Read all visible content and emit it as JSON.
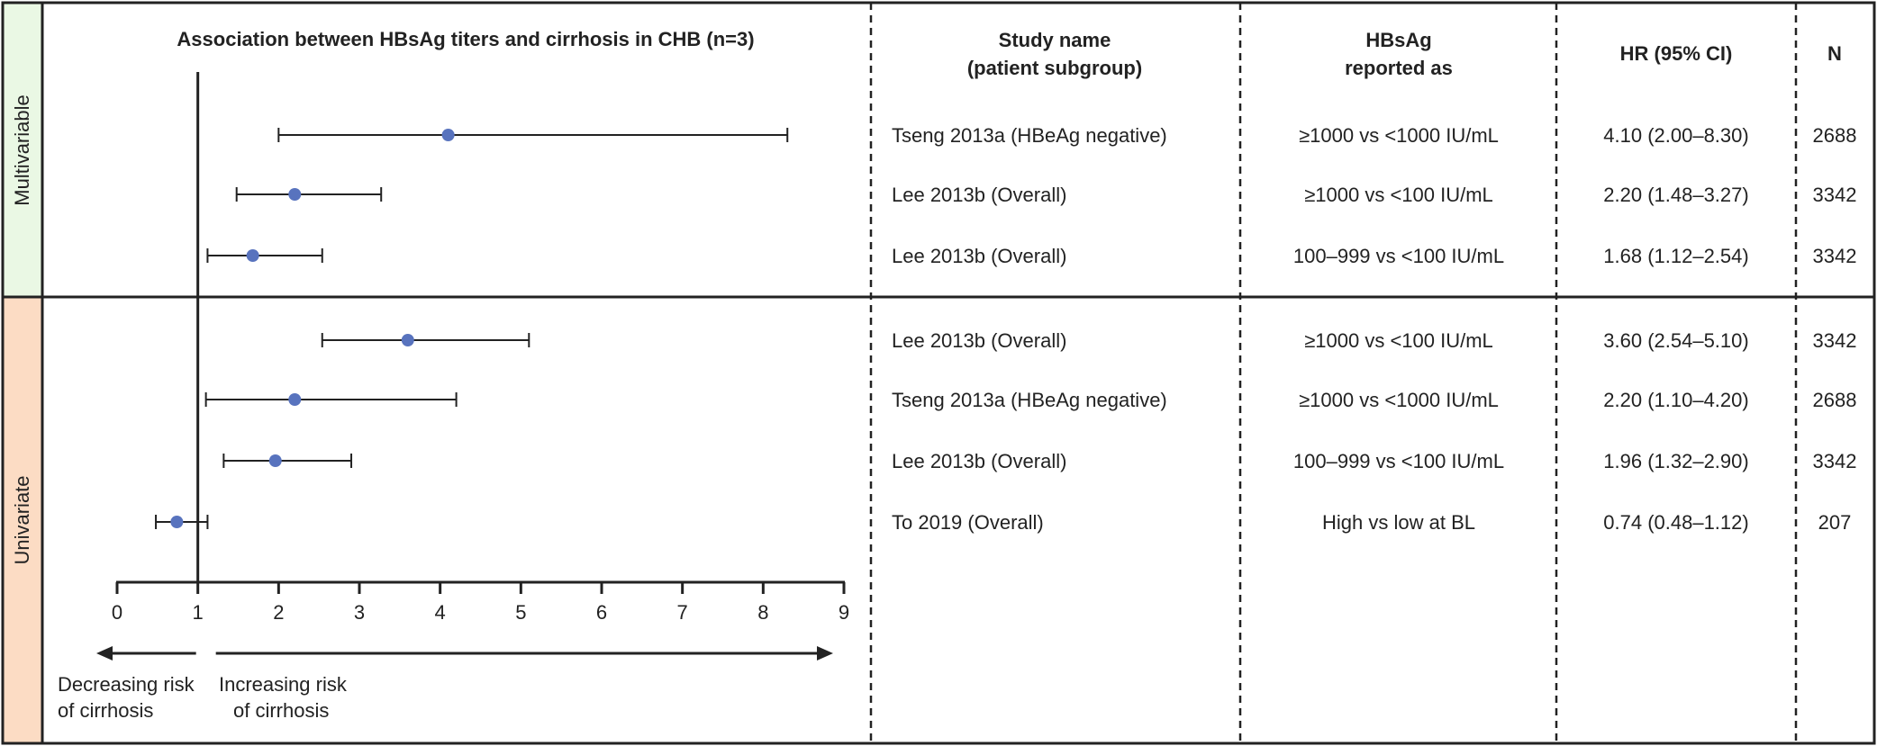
{
  "chart_data": {
    "type": "forest",
    "title": "Association between HBsAg titers and cirrhosis in CHB (n=3)",
    "xlim": [
      0,
      9
    ],
    "x_ticks": [
      "0",
      "1",
      "2",
      "3",
      "4",
      "5",
      "6",
      "7",
      "8",
      "9"
    ],
    "reference_line": 1,
    "arrow_left_label": [
      "Decreasing risk",
      "of cirrhosis"
    ],
    "arrow_right_label": [
      "Increasing risk",
      "of cirrhosis"
    ],
    "table_headers": {
      "study": [
        "Study name",
        "(patient subgroup)"
      ],
      "hbsag": [
        "HBsAg",
        "reported as"
      ],
      "hr": "HR (95% CI)",
      "n": "N"
    },
    "groups": [
      {
        "label": "Multivariable",
        "color": "#eaf8e4",
        "rows": [
          {
            "study": "Tseng 2013a (HBeAg negative)",
            "hbsag": "≥1000 vs <1000 IU/mL",
            "hr_text": "4.10 (2.00–8.30)",
            "n": "2688",
            "hr": 4.1,
            "lo": 2.0,
            "hi": 8.3
          },
          {
            "study": "Lee 2013b (Overall)",
            "hbsag": "≥1000 vs <100 IU/mL",
            "hr_text": "2.20 (1.48–3.27)",
            "n": "3342",
            "hr": 2.2,
            "lo": 1.48,
            "hi": 3.27
          },
          {
            "study": "Lee 2013b (Overall)",
            "hbsag": "100–999 vs <100 IU/mL",
            "hr_text": "1.68 (1.12–2.54)",
            "n": "3342",
            "hr": 1.68,
            "lo": 1.12,
            "hi": 2.54
          }
        ]
      },
      {
        "label": "Univariate",
        "color": "#fcdcc4",
        "rows": [
          {
            "study": "Lee 2013b (Overall)",
            "hbsag": "≥1000 vs <100 IU/mL",
            "hr_text": "3.60 (2.54–5.10)",
            "n": "3342",
            "hr": 3.6,
            "lo": 2.54,
            "hi": 5.1
          },
          {
            "study": "Tseng 2013a (HBeAg negative)",
            "hbsag": "≥1000 vs <1000 IU/mL",
            "hr_text": "2.20 (1.10–4.20)",
            "n": "2688",
            "hr": 2.2,
            "lo": 1.1,
            "hi": 4.2
          },
          {
            "study": "Lee 2013b (Overall)",
            "hbsag": "100–999 vs <100 IU/mL",
            "hr_text": "1.96 (1.32–2.90)",
            "n": "3342",
            "hr": 1.96,
            "lo": 1.32,
            "hi": 2.9
          },
          {
            "study": "To 2019 (Overall)",
            "hbsag": "High vs low at BL",
            "hr_text": "0.74 (0.48–1.12)",
            "n": "207",
            "hr": 0.74,
            "lo": 0.48,
            "hi": 1.12
          }
        ]
      }
    ],
    "point_color": "#5873be"
  }
}
